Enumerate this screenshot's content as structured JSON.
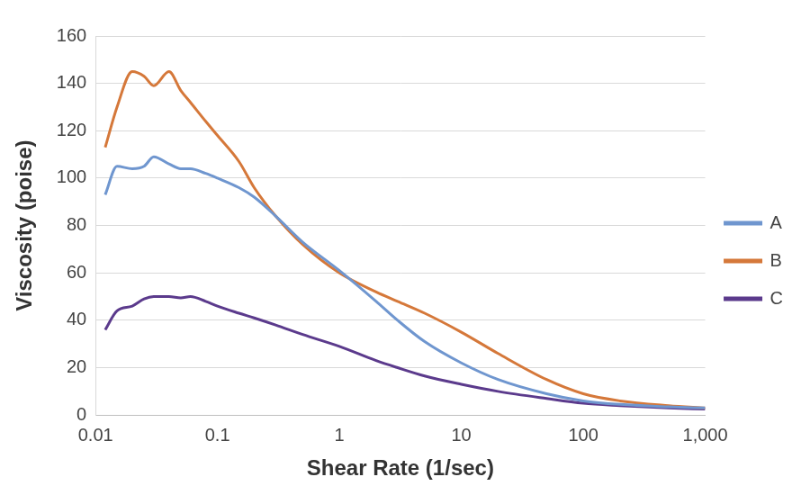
{
  "chart_data": {
    "type": "line",
    "x_label": "Shear Rate (1/sec)",
    "y_label": "Viscosity (poise)",
    "log": "x",
    "grid": "y",
    "legend": "right",
    "x": [
      0.012,
      0.015,
      0.02,
      0.025,
      0.03,
      0.04,
      0.05,
      0.06,
      0.08,
      0.1,
      0.15,
      0.2,
      0.3,
      0.5,
      1,
      2,
      3,
      5,
      10,
      20,
      50,
      100,
      200,
      500,
      1000
    ],
    "series": [
      {
        "name": "A",
        "color": "#6f96cf",
        "values": [
          93,
          105,
          104,
          105,
          109,
          106,
          104,
          104,
          102,
          100,
          96,
          92,
          84,
          73,
          61,
          48,
          40,
          31,
          22,
          15,
          9,
          6,
          4.5,
          3.5,
          3
        ]
      },
      {
        "name": "B",
        "color": "#d5783a",
        "values": [
          113,
          130,
          145,
          143,
          139,
          145,
          137,
          132,
          124,
          118,
          107,
          96,
          84,
          72,
          60,
          52,
          48,
          43,
          35,
          26,
          15,
          9,
          6,
          4,
          3
        ]
      },
      {
        "name": "C",
        "color": "#5b3a8c",
        "values": [
          36,
          44,
          46,
          49,
          50,
          50,
          49.5,
          50,
          48,
          46,
          43,
          41,
          38,
          34,
          29,
          23,
          20,
          16.5,
          13,
          10,
          7,
          5,
          4,
          3,
          2.5
        ]
      }
    ],
    "xlim": [
      0.01,
      1000
    ],
    "xticks": [
      0.01,
      0.1,
      1,
      10,
      100,
      {
        "value": 1000,
        "label": "1,000"
      }
    ],
    "ylim": [
      0,
      160
    ],
    "yticks": [
      0,
      20,
      40,
      60,
      80,
      100,
      120,
      140,
      160
    ]
  }
}
